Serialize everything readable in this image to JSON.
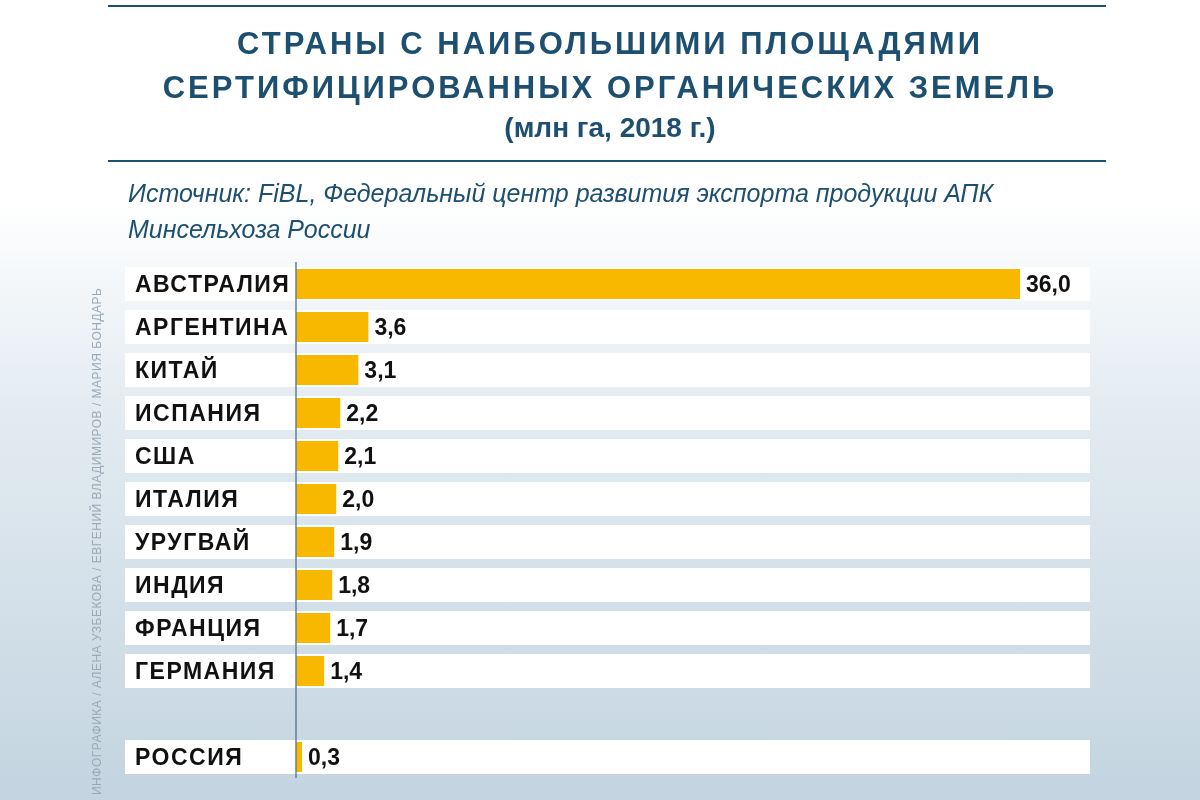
{
  "chart_data": {
    "type": "bar",
    "orientation": "horizontal",
    "title": "СТРАНЫ С НАИБОЛЬШИМИ ПЛОЩАДЯМИ СЕРТИФИЦИРОВАННЫХ ОРГАНИЧЕСКИХ ЗЕМЕЛЬ",
    "subtitle": "(млн га, 2018 г.)",
    "annotations": [
      "Источник: FiBL, Федеральный центр развития экспорта продукции АПК Минсельхоза России",
      "ИНФОГРАФИКА / АЛЕНА УЗБЕКОВА / ЕВГЕНИЙ ВЛАДИМИРОВ / МАРИЯ БОНДАРЬ"
    ],
    "categories": [
      "АВСТРАЛИЯ",
      "АРГЕНТИНА",
      "КИТАЙ",
      "ИСПАНИЯ",
      "США",
      "ИТАЛИЯ",
      "УРУГВАЙ",
      "ИНДИЯ",
      "ФРАНЦИЯ",
      "ГЕРМАНИЯ",
      null,
      "РОССИЯ"
    ],
    "values": [
      36.0,
      3.6,
      3.1,
      2.2,
      2.1,
      2.0,
      1.9,
      1.8,
      1.7,
      1.4,
      null,
      0.3
    ],
    "value_labels": [
      "36,0",
      "3,6",
      "3,1",
      "2,2",
      "2,1",
      "2,0",
      "1,9",
      "1,8",
      "1,7",
      "1,4",
      null,
      "0,3"
    ],
    "color": "#f9b800",
    "grid": false,
    "legend": false
  }
}
